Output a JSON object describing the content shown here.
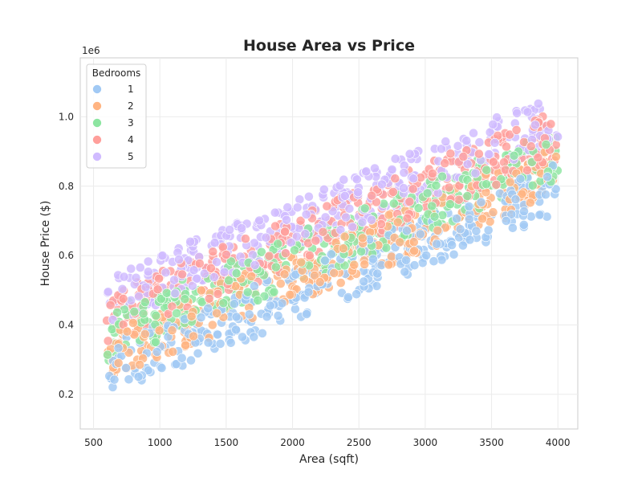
{
  "chart_data": {
    "type": "scatter",
    "title": "House Area vs Price",
    "xlabel": "Area (sqft)",
    "ylabel": "House Price ($)",
    "y_scale_label": "1e6",
    "xlim": [
      400,
      4150
    ],
    "ylim": [
      100000,
      1170000
    ],
    "x_ticks": [
      500,
      1000,
      1500,
      2000,
      2500,
      3000,
      3500,
      4000
    ],
    "x_tick_labels": [
      "500",
      "1000",
      "1500",
      "2000",
      "2500",
      "3000",
      "3500",
      "4000"
    ],
    "y_ticks": [
      200000,
      400000,
      600000,
      800000,
      1000000
    ],
    "y_tick_labels": [
      "0.2",
      "0.4",
      "0.6",
      "0.8",
      "1.0"
    ],
    "grid": true,
    "legend": {
      "title": "Bedrooms",
      "placement": "top-left"
    },
    "series": [
      {
        "name": "1",
        "color": "#a1c9f4",
        "intercept": 100000,
        "slope": 155,
        "spread": 150000
      },
      {
        "name": "2",
        "color": "#ffb482",
        "intercept": 150000,
        "slope": 155,
        "spread": 150000
      },
      {
        "name": "3",
        "color": "#8de5a1",
        "intercept": 200000,
        "slope": 155,
        "spread": 150000
      },
      {
        "name": "4",
        "color": "#ff9f9b",
        "intercept": 250000,
        "slope": 155,
        "spread": 150000
      },
      {
        "name": "5",
        "color": "#d0bbff",
        "intercept": 300000,
        "slope": 155,
        "spread": 150000
      }
    ],
    "x_range": [
      600,
      4000
    ]
  }
}
